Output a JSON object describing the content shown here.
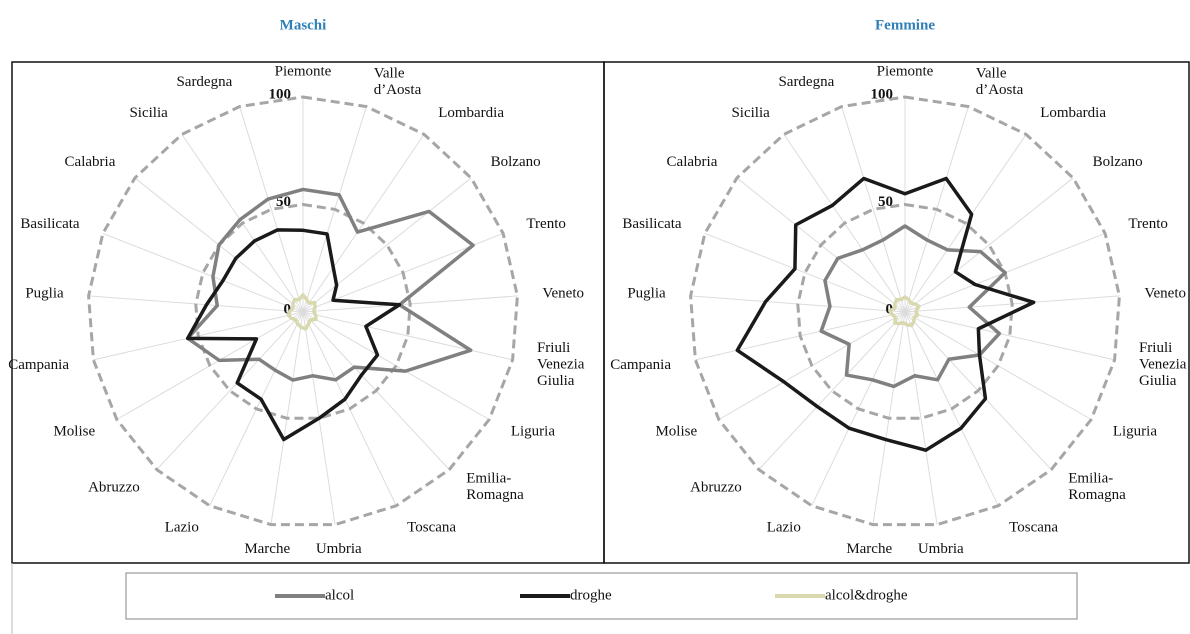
{
  "chart_data": [
    {
      "type": "radar",
      "title": "Maschi",
      "categories": [
        "Piemonte",
        "Valle\nd’Aosta",
        "Lombardia",
        "Bolzano",
        "Trento",
        "Veneto",
        "Friuli\nVenezia\nGiulia",
        "Liguria",
        "Emilia-\nRomagna",
        "Toscana",
        "Umbria",
        "Marche",
        "Lazio",
        "Abruzzo",
        "Molise",
        "Campania",
        "Puglia",
        "Basilicata",
        "Calabria",
        "Sicilia",
        "Sardegna"
      ],
      "series": [
        {
          "name": "alcol",
          "color": "#808080",
          "values": [
            57,
            57,
            45,
            75,
            85,
            45,
            80,
            55,
            35,
            35,
            30,
            32,
            30,
            30,
            45,
            55,
            40,
            45,
            50,
            52,
            55
          ]
        },
        {
          "name": "droghe",
          "color": "#1a1a1a",
          "values": [
            38,
            38,
            25,
            20,
            15,
            45,
            30,
            40,
            40,
            45,
            50,
            60,
            45,
            45,
            25,
            55,
            45,
            40,
            40,
            40,
            40
          ]
        },
        {
          "name": "alcol&droghe",
          "color": "#d9d9b0",
          "values": [
            8,
            6,
            5,
            7,
            6,
            5,
            6,
            7,
            5,
            6,
            8,
            7,
            6,
            5,
            6,
            7,
            6,
            5,
            6,
            7,
            6
          ]
        }
      ],
      "ylim": [
        0,
        100
      ],
      "yticks": [
        0,
        50,
        100
      ],
      "grid": true
    },
    {
      "type": "radar",
      "title": "Femmine",
      "categories": [
        "Piemonte",
        "Valle\nd’Aosta",
        "Lombardia",
        "Bolzano",
        "Trento",
        "Veneto",
        "Friuli\nVenezia\nGiulia",
        "Liguria",
        "Emilia-\nRomagna",
        "Toscana",
        "Umbria",
        "Marche",
        "Lazio",
        "Abruzzo",
        "Molise",
        "Campania",
        "Puglia",
        "Basilicata",
        "Calabria",
        "Sicilia",
        "Sardegna"
      ],
      "series": [
        {
          "color": "#808080",
          "values": [
            40,
            35,
            35,
            45,
            50,
            30,
            45,
            40,
            30,
            35,
            30,
            35,
            35,
            40,
            30,
            40,
            35,
            40,
            40,
            35,
            35
          ]
        },
        {
          "color": "#1a1a1a",
          "values": [
            55,
            65,
            55,
            30,
            35,
            60,
            35,
            40,
            55,
            60,
            65,
            60,
            60,
            60,
            65,
            80,
            65,
            55,
            65,
            60,
            65
          ]
        },
        {
          "color": "#d9d9b0",
          "values": [
            7,
            6,
            5,
            6,
            7,
            5,
            6,
            5,
            6,
            7,
            6,
            5,
            6,
            7,
            5,
            6,
            7,
            5,
            6,
            7,
            6
          ]
        }
      ],
      "ylim": [
        0,
        100
      ],
      "yticks": [
        0,
        50,
        100
      ],
      "grid": true
    }
  ]
}
